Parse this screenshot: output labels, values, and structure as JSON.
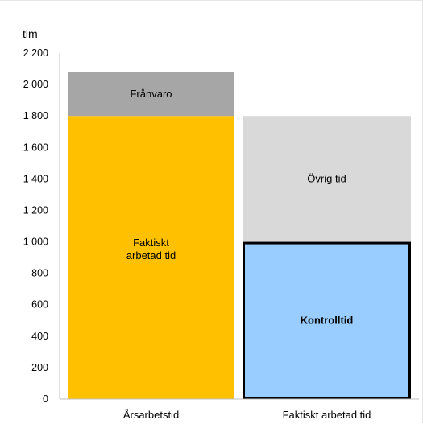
{
  "chart_data": {
    "type": "bar",
    "stacked": true,
    "ylabel": "tim",
    "ylim": [
      0,
      2200
    ],
    "y_ticks": [
      0,
      200,
      400,
      600,
      800,
      1000,
      1200,
      1400,
      1600,
      1800,
      2000,
      2200
    ],
    "y_tick_labels": [
      "0",
      "200",
      "400",
      "600",
      "800",
      "1 000",
      "1 200",
      "1 400",
      "1 600",
      "1 800",
      "2 000",
      "2 200"
    ],
    "grid": false,
    "categories": [
      "Årsarbetstid",
      "Faktiskt arbetad tid"
    ],
    "bars": [
      {
        "category": "Årsarbetstid",
        "segments": [
          {
            "label": "Faktiskt arbetad tid",
            "value": 1800,
            "color": "#FFC000",
            "label_bold": false
          },
          {
            "label": "Frånvaro",
            "value": 280,
            "color": "#A6A6A6",
            "label_bold": false
          }
        ]
      },
      {
        "category": "Faktiskt arbetad tid",
        "segments": [
          {
            "label": "Kontrolltid",
            "value": 1000,
            "color": "#99CCFF",
            "label_bold": true,
            "outlined": true
          },
          {
            "label": "Övrig tid",
            "value": 800,
            "color": "#D9D9D9",
            "label_bold": false
          }
        ]
      }
    ]
  }
}
